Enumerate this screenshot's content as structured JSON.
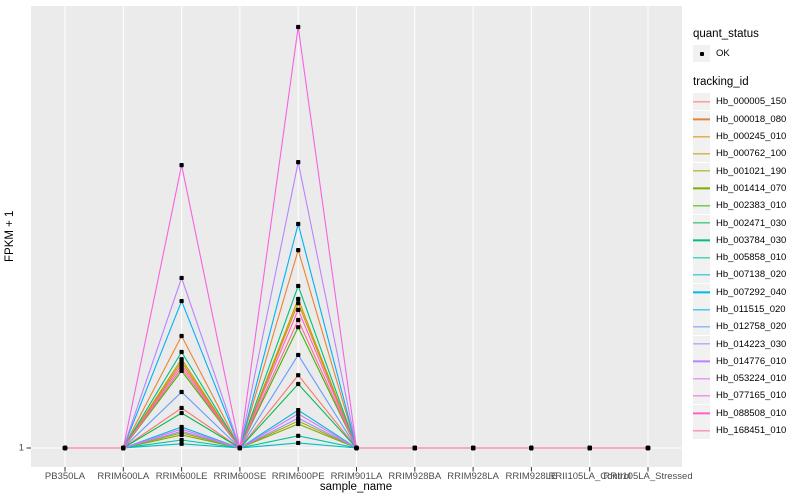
{
  "legend": {
    "quant_status": {
      "title": "quant_status",
      "items": [
        {
          "label": "OK",
          "glyph": "point"
        }
      ]
    },
    "tracking_id": {
      "title": "tracking_id"
    }
  },
  "chart_data": {
    "type": "line",
    "title": "",
    "xlabel": "sample_name",
    "ylabel": "FPKM + 1",
    "y_tick_labels": [
      "1"
    ],
    "x_categories": [
      "PB350LA",
      "RRIM600LA",
      "RRIM600LE",
      "RRIM600SE",
      "RRIM600PE",
      "RRIM901LA",
      "RRIM928BA",
      "RRIM928LA",
      "RRIM928LE",
      "RRII105LA_Control",
      "RRII105LA_Stressed"
    ],
    "height_unit": "fraction of panel height above the y = 1 baseline (only visible y tick is '1'); all samples other than the two peak columns sit at y = 1",
    "peak_columns": [
      "RRIM600LE",
      "RRIM600PE"
    ],
    "point_marker": {
      "shape": "small-black-square-dot",
      "color": "#000000"
    },
    "colors": {
      "panel_bg": "#EBEBEB",
      "grid": "#FFFFFF",
      "tick_text": "#4D4D4D",
      "axis_text": "#000000",
      "legend_key_bg": "#F1F1F1"
    },
    "series": [
      {
        "name": "Hb_000005_150",
        "color": "#F8766D",
        "peaks": {
          "RRIM600LE": 0.095,
          "RRIM600PE": 0.173
        }
      },
      {
        "name": "Hb_000018_080",
        "color": "#EA8331",
        "peaks": {
          "RRIM600LE": 0.266,
          "RRIM600PE": 0.47
        }
      },
      {
        "name": "Hb_000245_010",
        "color": "#D89000",
        "peaks": {
          "RRIM600LE": 0.204,
          "RRIM600PE": 0.344
        }
      },
      {
        "name": "Hb_000762_100",
        "color": "#C09B00",
        "peaks": {
          "RRIM600LE": 0.211,
          "RRIM600PE": 0.354
        }
      },
      {
        "name": "Hb_001021_190",
        "color": "#A3A500",
        "peaks": {
          "RRIM600LE": 0.036,
          "RRIM600PE": 0.064
        }
      },
      {
        "name": "Hb_001414_070",
        "color": "#7CAE00",
        "peaks": {
          "RRIM600LE": 0.031,
          "RRIM600PE": 0.057
        }
      },
      {
        "name": "Hb_002383_010",
        "color": "#39B600",
        "peaks": {
          "RRIM600LE": 0.183,
          "RRIM600PE": 0.287
        }
      },
      {
        "name": "Hb_002471_030",
        "color": "#00BB4E",
        "peaks": {
          "RRIM600LE": 0.083,
          "RRIM600PE": 0.152
        }
      },
      {
        "name": "Hb_003784_030",
        "color": "#00BF7D",
        "peaks": {
          "RRIM600LE": 0.228,
          "RRIM600PE": 0.385
        }
      },
      {
        "name": "Hb_005858_010",
        "color": "#00C1A3",
        "peaks": {
          "RRIM600LE": 0.019,
          "RRIM600PE": 0.029
        }
      },
      {
        "name": "Hb_007138_020",
        "color": "#00BFC4",
        "peaks": {
          "RRIM600LE": 0.01,
          "RRIM600PE": 0.012
        }
      },
      {
        "name": "Hb_007292_040",
        "color": "#00BAE0",
        "peaks": {
          "RRIM600LE": 0.05,
          "RRIM600PE": 0.09
        }
      },
      {
        "name": "Hb_011515_020",
        "color": "#00B0F6",
        "peaks": {
          "RRIM600LE": 0.349,
          "RRIM600PE": 0.532
        }
      },
      {
        "name": "Hb_012758_020",
        "color": "#619CFF",
        "peaks": {
          "RRIM600LE": 0.133,
          "RRIM600PE": 0.221
        }
      },
      {
        "name": "Hb_014223_030",
        "color": "#9590FF",
        "peaks": {
          "RRIM600LE": 0.04,
          "RRIM600PE": 0.071
        }
      },
      {
        "name": "Hb_014776_010",
        "color": "#BC81FF",
        "peaks": {
          "RRIM600LE": 0.404,
          "RRIM600PE": 0.679
        }
      },
      {
        "name": "Hb_053224_010",
        "color": "#E36EF6",
        "peaks": {
          "RRIM600LE": 0.045,
          "RRIM600PE": 0.081
        }
      },
      {
        "name": "Hb_077165_010",
        "color": "#F763E0",
        "peaks": {
          "RRIM600LE": 0.672,
          "RRIM600PE": 1.0
        }
      },
      {
        "name": "Hb_088508_010",
        "color": "#FF61C7",
        "peaks": {
          "RRIM600LE": 0.197,
          "RRIM600PE": 0.328
        }
      },
      {
        "name": "Hb_168451_010",
        "color": "#FF6A9A",
        "peaks": {
          "RRIM600LE": 0.19,
          "RRIM600PE": 0.304
        }
      }
    ]
  }
}
